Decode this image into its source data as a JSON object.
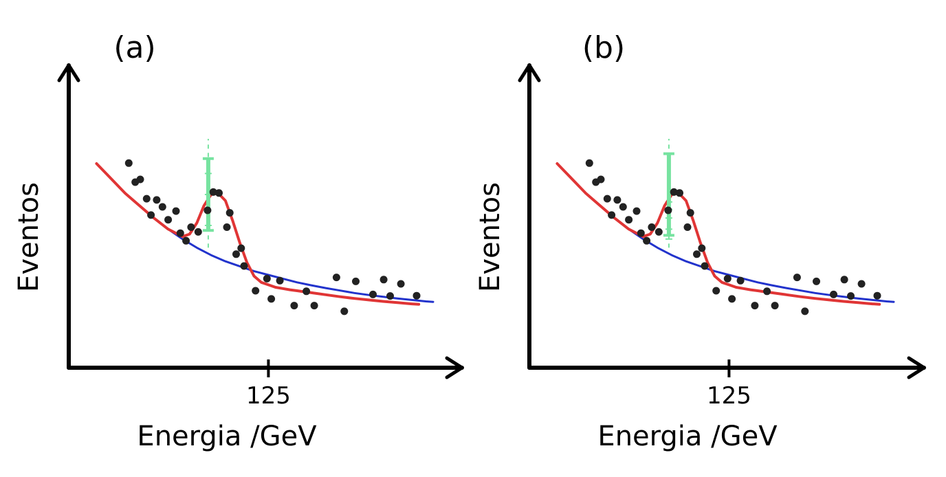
{
  "chart_data": [
    {
      "panel_label": "(a)",
      "type": "scatter",
      "xlabel": "Energia /GeV",
      "ylabel": "Eventos",
      "x_ticks": [
        {
          "value": 125,
          "label": "125"
        }
      ],
      "xlim": [
        100,
        148
      ],
      "ylim": [
        0,
        100
      ],
      "points": [
        [
          105.5,
          70.2
        ],
        [
          106.4,
          62.5
        ],
        [
          107.1,
          63.6
        ],
        [
          108.0,
          55.8
        ],
        [
          108.6,
          49.2
        ],
        [
          109.4,
          55.3
        ],
        [
          110.2,
          52.5
        ],
        [
          111.0,
          47.3
        ],
        [
          112.1,
          50.8
        ],
        [
          112.7,
          41.9
        ],
        [
          113.5,
          38.8
        ],
        [
          114.2,
          44.3
        ],
        [
          115.2,
          42.4
        ],
        [
          116.5,
          51.1
        ],
        [
          117.3,
          58.5
        ],
        [
          118.1,
          58.1
        ],
        [
          119.2,
          44.3
        ],
        [
          119.6,
          50.1
        ],
        [
          120.5,
          33.4
        ],
        [
          121.2,
          35.8
        ],
        [
          121.6,
          28.6
        ],
        [
          123.2,
          18.6
        ],
        [
          124.8,
          23.5
        ],
        [
          125.4,
          15.3
        ],
        [
          126.6,
          22.7
        ],
        [
          128.6,
          12.6
        ],
        [
          130.3,
          18.4
        ],
        [
          131.4,
          12.6
        ],
        [
          134.5,
          24.0
        ],
        [
          135.6,
          10.3
        ],
        [
          137.2,
          22.4
        ],
        [
          139.6,
          17.1
        ],
        [
          141.1,
          23.1
        ],
        [
          142.0,
          16.5
        ],
        [
          143.5,
          21.4
        ],
        [
          145.7,
          16.6
        ]
      ],
      "series": [
        {
          "color": "#2233cc",
          "role": "background",
          "x": [
            101,
            103,
            105,
            107,
            109,
            111,
            113,
            115,
            117,
            119,
            121,
            123,
            125,
            127,
            129,
            131,
            133,
            135,
            137,
            139,
            141,
            143,
            145,
            147,
            148
          ],
          "y": [
            70,
            64,
            58,
            53,
            48,
            43.5,
            39.5,
            36,
            33,
            30.5,
            28.5,
            26.5,
            25,
            23.5,
            22,
            20.8,
            19.7,
            18.7,
            17.7,
            16.9,
            16.2,
            15.5,
            14.9,
            14.3,
            14.1
          ]
        },
        {
          "color": "#e03535",
          "role": "fit",
          "x": [
            101,
            103,
            105,
            107,
            109,
            111,
            113,
            114,
            115,
            116,
            117,
            118,
            119,
            120,
            121,
            122,
            123,
            124,
            125,
            126,
            127,
            128,
            129,
            130,
            131,
            133,
            135,
            137,
            139,
            141,
            143,
            145,
            146
          ],
          "y": [
            70,
            64,
            58,
            53,
            48,
            43.5,
            40.5,
            41.5,
            46,
            53,
            57.5,
            58,
            55,
            47,
            38,
            30,
            24.5,
            22,
            21,
            20,
            19.5,
            19,
            18.6,
            18.2,
            17.8,
            17,
            16.2,
            15.5,
            14.9,
            14.3,
            13.8,
            13.3,
            13.1
          ]
        }
      ],
      "error_bars": [
        {
          "x": 116.6,
          "y": 57.5,
          "err": 14.5,
          "color": "#77e3a0"
        }
      ],
      "dashed_line": {
        "x": 116.6,
        "y_from": 36,
        "y_to": 80,
        "color": "#77e3a0"
      },
      "dashed_line_ticks_y": [
        57.5,
        45,
        66
      ],
      "grid": false
    },
    {
      "panel_label": "(b)",
      "type": "scatter",
      "xlabel": "Energia /GeV",
      "ylabel": "Eventos",
      "x_ticks": [
        {
          "value": 125,
          "label": "125"
        }
      ],
      "xlim": [
        100,
        148
      ],
      "ylim": [
        0,
        100
      ],
      "points": [
        [
          105.5,
          70.2
        ],
        [
          106.4,
          62.5
        ],
        [
          107.1,
          63.6
        ],
        [
          108.0,
          55.8
        ],
        [
          108.6,
          49.2
        ],
        [
          109.4,
          55.3
        ],
        [
          110.2,
          52.5
        ],
        [
          111.0,
          47.3
        ],
        [
          112.1,
          50.8
        ],
        [
          112.7,
          41.9
        ],
        [
          113.5,
          38.8
        ],
        [
          114.2,
          44.3
        ],
        [
          115.2,
          42.4
        ],
        [
          116.5,
          51.1
        ],
        [
          117.3,
          58.5
        ],
        [
          118.1,
          58.1
        ],
        [
          119.2,
          44.3
        ],
        [
          119.6,
          50.1
        ],
        [
          120.5,
          33.4
        ],
        [
          121.2,
          35.8
        ],
        [
          121.6,
          28.6
        ],
        [
          123.2,
          18.6
        ],
        [
          124.8,
          23.5
        ],
        [
          125.4,
          15.3
        ],
        [
          126.6,
          22.7
        ],
        [
          128.6,
          12.6
        ],
        [
          130.3,
          18.4
        ],
        [
          131.4,
          12.6
        ],
        [
          134.5,
          24.0
        ],
        [
          135.6,
          10.3
        ],
        [
          137.2,
          22.4
        ],
        [
          139.6,
          17.1
        ],
        [
          141.1,
          23.1
        ],
        [
          142.0,
          16.5
        ],
        [
          143.5,
          21.4
        ],
        [
          145.7,
          16.6
        ]
      ],
      "series": [
        {
          "color": "#2233cc",
          "role": "background",
          "x": [
            101,
            103,
            105,
            107,
            109,
            111,
            113,
            115,
            117,
            119,
            121,
            123,
            125,
            127,
            129,
            131,
            133,
            135,
            137,
            139,
            141,
            143,
            145,
            147,
            148
          ],
          "y": [
            70,
            64,
            58,
            53,
            48,
            43.5,
            39.5,
            36,
            33,
            30.5,
            28.5,
            26.5,
            25,
            23.5,
            22,
            20.8,
            19.7,
            18.7,
            17.7,
            16.9,
            16.2,
            15.5,
            14.9,
            14.3,
            14.1
          ]
        },
        {
          "color": "#e03535",
          "role": "fit",
          "x": [
            101,
            103,
            105,
            107,
            109,
            111,
            113,
            114,
            115,
            116,
            117,
            118,
            119,
            120,
            121,
            122,
            123,
            124,
            125,
            126,
            127,
            128,
            129,
            130,
            131,
            133,
            135,
            137,
            139,
            141,
            143,
            145,
            146
          ],
          "y": [
            70,
            64,
            58,
            53,
            48,
            43.5,
            40.5,
            41.5,
            46,
            53,
            57.5,
            58,
            55,
            47,
            38,
            30,
            24.5,
            22,
            21,
            20,
            19.5,
            19,
            18.6,
            18.2,
            17.8,
            17,
            16.2,
            15.5,
            14.9,
            14.3,
            13.8,
            13.3,
            13.1
          ]
        }
      ],
      "error_bars": [
        {
          "x": 116.6,
          "y": 57.5,
          "err": 16.5,
          "color": "#77e3a0"
        }
      ],
      "dashed_line": {
        "x": 116.6,
        "y_from": 36,
        "y_to": 80,
        "color": "#77e3a0"
      },
      "dashed_line_ticks_y": [
        48,
        43.5,
        39.5,
        51.5,
        54.5
      ],
      "grid": false
    }
  ]
}
